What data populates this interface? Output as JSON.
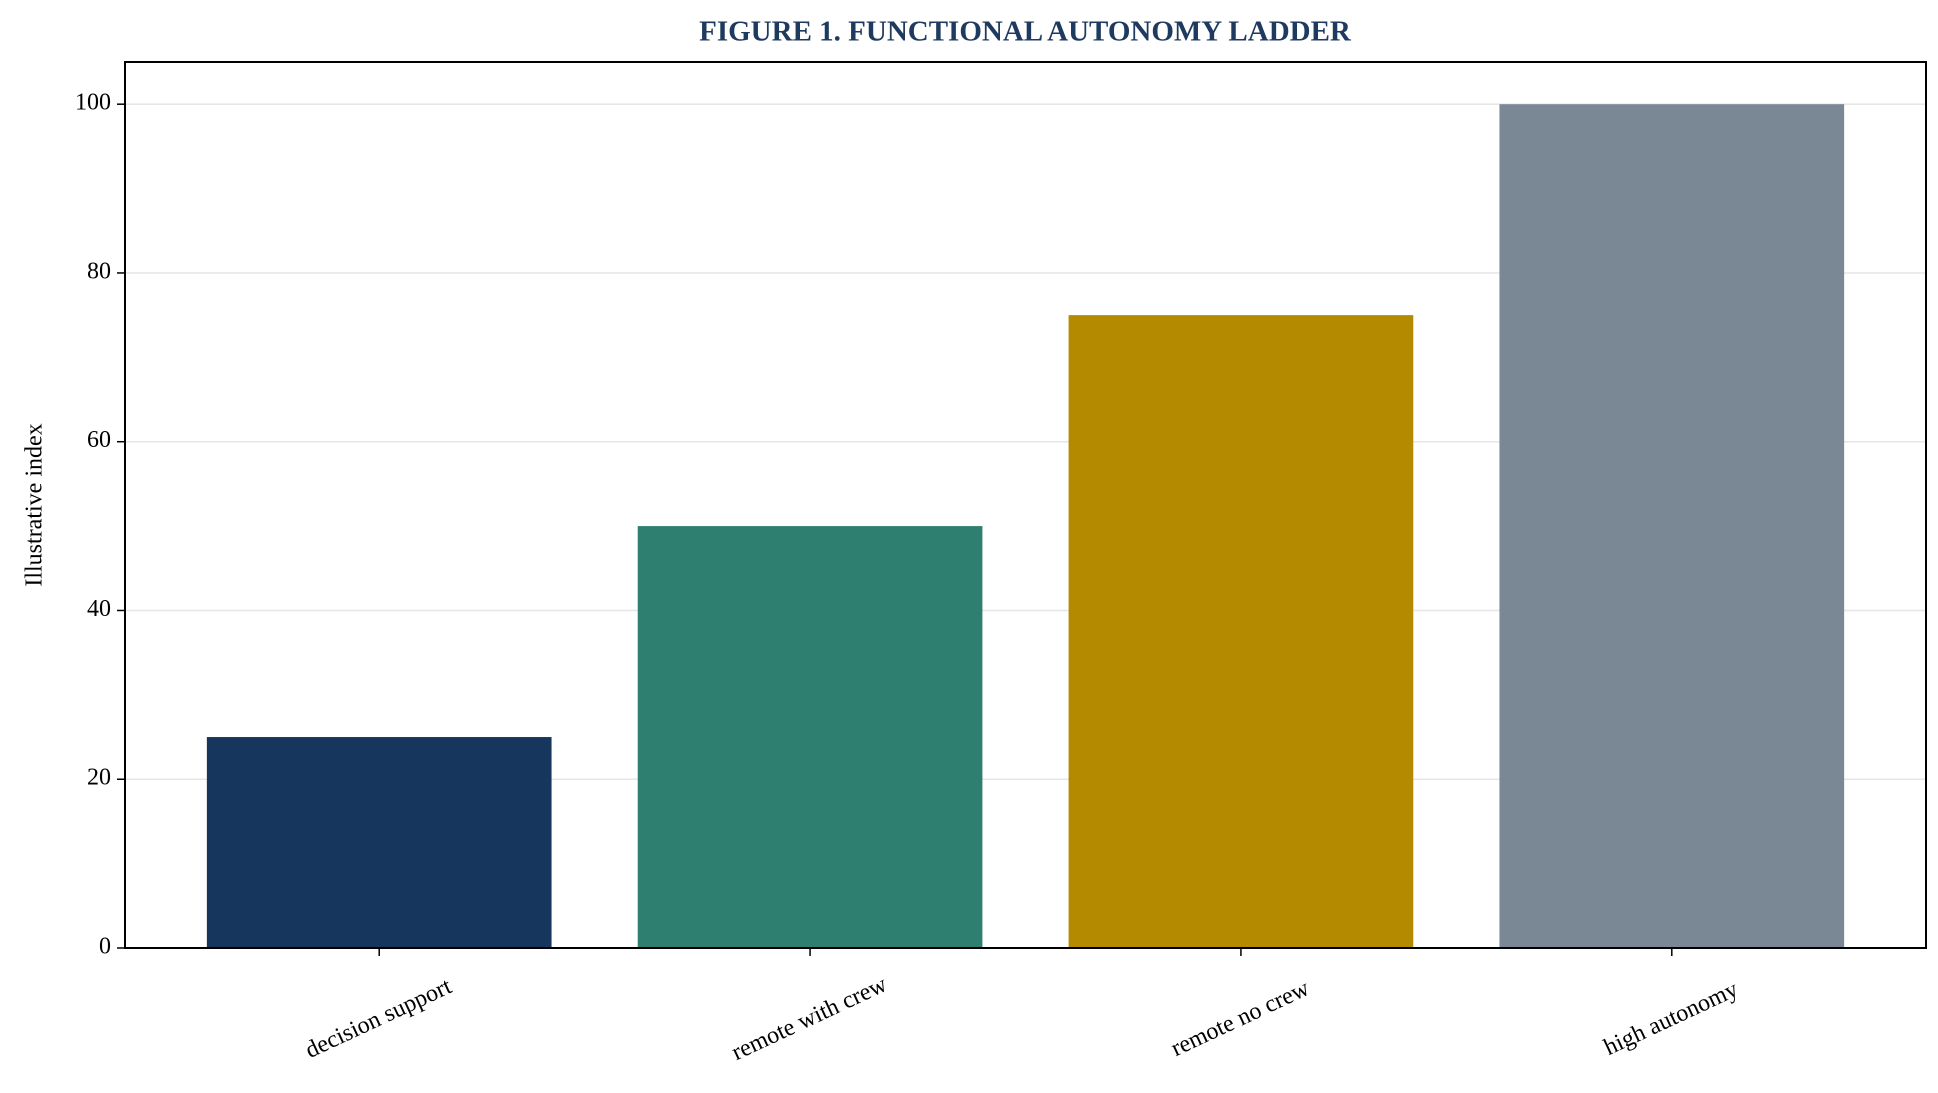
{
  "chart_data": {
    "type": "bar",
    "title": "FIGURE 1. FUNCTIONAL AUTONOMY LADDER",
    "y_label": "Illustrative index",
    "categories": [
      "decision support",
      "remote with crew",
      "remote no crew",
      "high autonomy"
    ],
    "values": [
      25,
      50,
      75,
      100
    ],
    "colors": [
      "#17365d",
      "#2e7f6f",
      "#b38a00",
      "#7a8794"
    ],
    "ylim": [
      0,
      105
    ],
    "yticks": [
      0,
      20,
      40,
      60,
      80,
      100
    ],
    "grid": true
  }
}
